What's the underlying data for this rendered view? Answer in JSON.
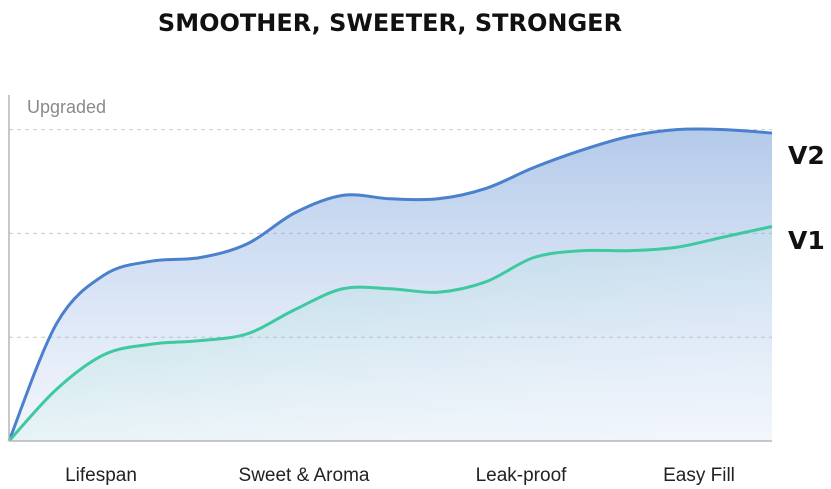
{
  "chart_data": {
    "type": "area",
    "title": "SMOOTHER, SWEETER, STRONGER",
    "ylabel": "Upgraded",
    "xlabel": "",
    "categories": [
      "Lifespan",
      "Sweet & Aroma",
      "Leak-proof",
      "Easy Fill"
    ],
    "ylim": [
      0,
      100
    ],
    "grid": true,
    "x": [
      0,
      0.5,
      1,
      1.5,
      2,
      2.5,
      3,
      3.5,
      4,
      4.5,
      5,
      5.5,
      6,
      6.5,
      7,
      7.5,
      8
    ],
    "series": [
      {
        "name": "V2",
        "color": "#4a80cc",
        "values": [
          0,
          34,
          48,
          52,
          53,
          57,
          66,
          71,
          70,
          70,
          73,
          79,
          84,
          88,
          90,
          90,
          89
        ]
      },
      {
        "name": "V1",
        "color": "#3ec9a0",
        "values": [
          0,
          15,
          25,
          28,
          29,
          31,
          38,
          44,
          44,
          43,
          46,
          53,
          55,
          55,
          56,
          59,
          62
        ]
      }
    ]
  }
}
